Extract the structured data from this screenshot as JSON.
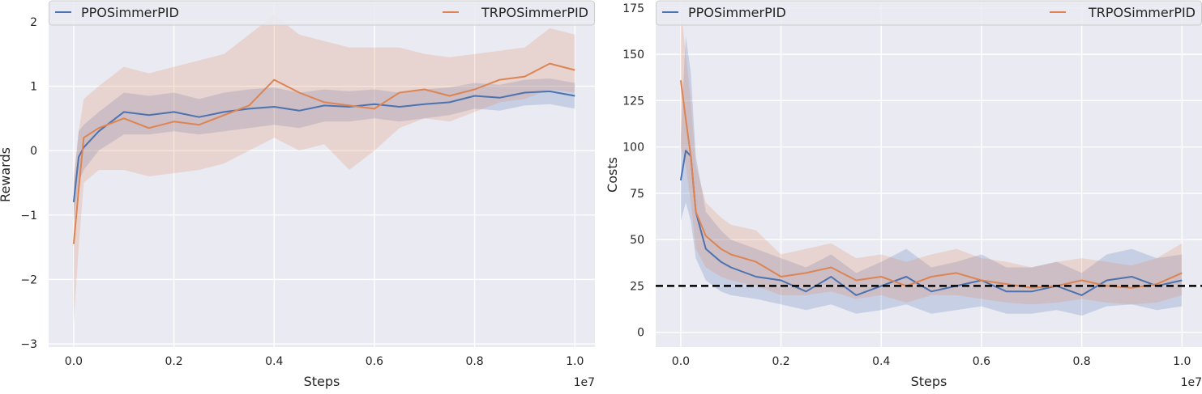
{
  "chart_data": [
    {
      "type": "line",
      "title": "",
      "xlabel": "Steps",
      "ylabel": "Rewards",
      "x_scale_label": "1e7",
      "xlim": [
        -0.05,
        1.04
      ],
      "ylim": [
        -3.05,
        2.3
      ],
      "x_ticks": [
        0.0,
        0.2,
        0.4,
        0.6,
        0.8,
        1.0
      ],
      "x_tick_labels": [
        "0.0",
        "0.2",
        "0.4",
        "0.6",
        "0.8",
        "1.0"
      ],
      "y_ticks": [
        -3,
        -2,
        -1,
        0,
        1,
        2
      ],
      "y_tick_labels": [
        "−3",
        "−2",
        "−1",
        "0",
        "1",
        "2"
      ],
      "grid": true,
      "legend": "top",
      "x": [
        0.0,
        0.01,
        0.02,
        0.05,
        0.1,
        0.15,
        0.2,
        0.25,
        0.3,
        0.35,
        0.4,
        0.45,
        0.5,
        0.55,
        0.6,
        0.65,
        0.7,
        0.75,
        0.8,
        0.85,
        0.9,
        0.95,
        1.0
      ],
      "series": [
        {
          "name": "PPOSimmerPID",
          "color": "#4c72b0",
          "values": [
            -0.8,
            -0.1,
            0.05,
            0.3,
            0.6,
            0.55,
            0.6,
            0.52,
            0.6,
            0.65,
            0.68,
            0.62,
            0.7,
            0.68,
            0.72,
            0.68,
            0.72,
            0.75,
            0.85,
            0.82,
            0.9,
            0.92,
            0.85
          ],
          "lower": [
            -1.1,
            -0.5,
            -0.3,
            0.0,
            0.25,
            0.25,
            0.3,
            0.25,
            0.3,
            0.35,
            0.4,
            0.35,
            0.45,
            0.45,
            0.5,
            0.45,
            0.5,
            0.55,
            0.65,
            0.62,
            0.7,
            0.72,
            0.65
          ],
          "upper": [
            -0.5,
            0.3,
            0.4,
            0.6,
            0.9,
            0.85,
            0.9,
            0.8,
            0.9,
            0.95,
            0.98,
            0.9,
            0.95,
            0.92,
            0.95,
            0.9,
            0.95,
            0.98,
            1.05,
            1.02,
            1.1,
            1.12,
            1.05
          ]
        },
        {
          "name": "TRPOSimmerPID",
          "color": "#dd8452",
          "values": [
            -1.45,
            -0.6,
            0.2,
            0.35,
            0.5,
            0.35,
            0.45,
            0.4,
            0.55,
            0.7,
            1.1,
            0.9,
            0.75,
            0.7,
            0.65,
            0.9,
            0.95,
            0.85,
            0.95,
            1.1,
            1.15,
            1.35,
            1.25
          ],
          "lower": [
            -2.7,
            -1.5,
            -0.5,
            -0.3,
            -0.3,
            -0.4,
            -0.35,
            -0.3,
            -0.2,
            0.0,
            0.2,
            0.0,
            0.1,
            -0.3,
            0.0,
            0.35,
            0.5,
            0.45,
            0.6,
            0.75,
            0.8,
            0.95,
            0.9
          ],
          "upper": [
            -0.4,
            0.3,
            0.8,
            1.0,
            1.3,
            1.2,
            1.3,
            1.4,
            1.5,
            1.8,
            2.1,
            1.8,
            1.7,
            1.6,
            1.6,
            1.6,
            1.5,
            1.45,
            1.5,
            1.55,
            1.6,
            1.9,
            1.8
          ]
        }
      ]
    },
    {
      "type": "line",
      "title": "",
      "xlabel": "Steps",
      "ylabel": "Costs",
      "x_scale_label": "1e7",
      "xlim": [
        -0.05,
        1.04
      ],
      "ylim": [
        -8,
        178
      ],
      "x_ticks": [
        0.0,
        0.2,
        0.4,
        0.6,
        0.8,
        1.0
      ],
      "x_tick_labels": [
        "0.0",
        "0.2",
        "0.4",
        "0.6",
        "0.8",
        "1.0"
      ],
      "y_ticks": [
        0,
        25,
        50,
        75,
        100,
        125,
        150,
        175
      ],
      "y_tick_labels": [
        "0",
        "25",
        "50",
        "75",
        "100",
        "125",
        "150",
        "175"
      ],
      "grid": true,
      "legend": "top",
      "threshold": 25,
      "x": [
        0.0,
        0.01,
        0.02,
        0.03,
        0.05,
        0.08,
        0.1,
        0.15,
        0.2,
        0.25,
        0.3,
        0.35,
        0.4,
        0.45,
        0.5,
        0.55,
        0.6,
        0.65,
        0.7,
        0.75,
        0.8,
        0.85,
        0.9,
        0.95,
        1.0
      ],
      "series": [
        {
          "name": "PPOSimmerPID",
          "color": "#4c72b0",
          "values": [
            82,
            98,
            95,
            65,
            45,
            38,
            35,
            30,
            28,
            22,
            30,
            20,
            25,
            30,
            22,
            25,
            28,
            22,
            22,
            25,
            20,
            28,
            30,
            25,
            28
          ],
          "lower": [
            60,
            70,
            60,
            40,
            28,
            22,
            20,
            18,
            15,
            12,
            15,
            10,
            12,
            15,
            10,
            12,
            14,
            10,
            10,
            12,
            9,
            14,
            15,
            12,
            14
          ],
          "upper": [
            105,
            160,
            140,
            95,
            65,
            55,
            50,
            45,
            40,
            35,
            42,
            32,
            38,
            45,
            35,
            38,
            42,
            35,
            35,
            38,
            32,
            42,
            45,
            40,
            42
          ]
        },
        {
          "name": "TRPOSimmerPID",
          "color": "#dd8452",
          "values": [
            136,
            115,
            95,
            65,
            52,
            45,
            42,
            38,
            30,
            32,
            35,
            28,
            30,
            25,
            30,
            32,
            28,
            26,
            24,
            25,
            28,
            25,
            24,
            26,
            32
          ],
          "lower": [
            100,
            90,
            70,
            45,
            35,
            30,
            28,
            25,
            20,
            20,
            22,
            18,
            20,
            16,
            20,
            20,
            18,
            16,
            15,
            16,
            18,
            16,
            15,
            16,
            20
          ],
          "upper": [
            175,
            150,
            125,
            90,
            70,
            62,
            58,
            55,
            42,
            45,
            48,
            40,
            42,
            38,
            42,
            45,
            40,
            38,
            35,
            38,
            40,
            38,
            36,
            40,
            48
          ]
        }
      ]
    }
  ]
}
